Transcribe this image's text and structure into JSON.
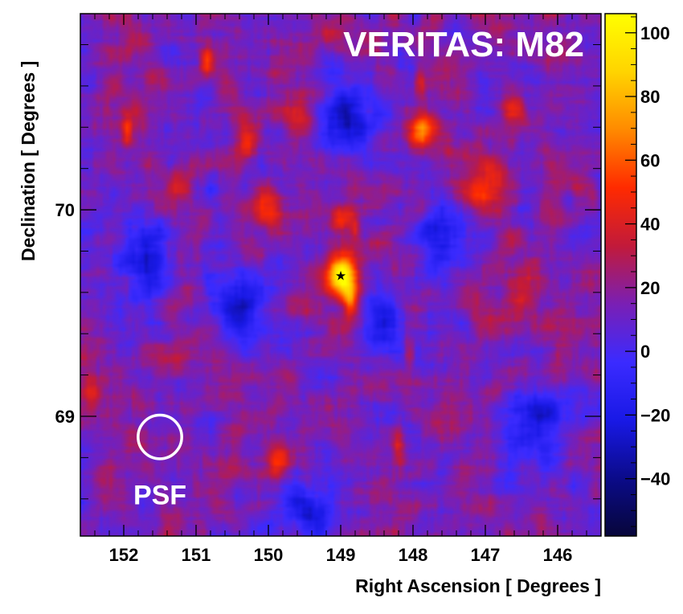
{
  "chart_data": {
    "type": "heatmap",
    "title": "VERITAS: M82",
    "xlabel": "Right Ascension [ Degrees ]",
    "ylabel": "Declination [ Degrees ]",
    "x_range": [
      152.6,
      145.4
    ],
    "y_range": [
      68.42,
      70.95
    ],
    "x_ticks": [
      152,
      151,
      150,
      149,
      148,
      147,
      146
    ],
    "y_ticks": [
      69,
      70
    ],
    "colorbar": {
      "range": [
        -58,
        106
      ],
      "ticks": [
        -40,
        -20,
        0,
        20,
        40,
        60,
        80,
        100
      ],
      "stops": [
        "#07063a",
        "#0b0b8a",
        "#1919e6",
        "#3b2bff",
        "#7a1fb4",
        "#c21a3a",
        "#ff2a00",
        "#ff8a00",
        "#ffd400",
        "#ffff00"
      ]
    },
    "background_level": 15,
    "hotspots": [
      {
        "ra": 149.0,
        "dec": 69.68,
        "value": 103,
        "sigma_ra": 0.12,
        "sigma_dec": 0.06
      },
      {
        "ra": 148.88,
        "dec": 69.62,
        "value": 45,
        "sigma_ra": 0.1,
        "sigma_dec": 0.1
      },
      {
        "ra": 148.85,
        "dec": 69.55,
        "value": 40,
        "sigma_ra": 0.05,
        "sigma_dec": 0.06
      },
      {
        "ra": 149.0,
        "dec": 69.95,
        "value": 60,
        "sigma_ra": 0.12,
        "sigma_dec": 0.05
      },
      {
        "ra": 148.8,
        "dec": 69.9,
        "value": 45,
        "sigma_ra": 0.05,
        "sigma_dec": 0.04
      },
      {
        "ra": 147.9,
        "dec": 70.38,
        "value": 70,
        "sigma_ra": 0.12,
        "sigma_dec": 0.06
      },
      {
        "ra": 150.85,
        "dec": 70.72,
        "value": 55,
        "sigma_ra": 0.06,
        "sigma_dec": 0.05
      },
      {
        "ra": 150.3,
        "dec": 70.32,
        "value": 50,
        "sigma_ra": 0.1,
        "sigma_dec": 0.06
      },
      {
        "ra": 149.6,
        "dec": 70.45,
        "value": 40,
        "sigma_ra": 0.15,
        "sigma_dec": 0.05
      },
      {
        "ra": 151.95,
        "dec": 70.38,
        "value": 45,
        "sigma_ra": 0.05,
        "sigma_dec": 0.05
      },
      {
        "ra": 151.25,
        "dec": 70.1,
        "value": 42,
        "sigma_ra": 0.1,
        "sigma_dec": 0.05
      },
      {
        "ra": 150.0,
        "dec": 70.0,
        "value": 42,
        "sigma_ra": 0.15,
        "sigma_dec": 0.06
      },
      {
        "ra": 147.0,
        "dec": 70.12,
        "value": 50,
        "sigma_ra": 0.2,
        "sigma_dec": 0.1
      },
      {
        "ra": 146.6,
        "dec": 70.5,
        "value": 40,
        "sigma_ra": 0.1,
        "sigma_dec": 0.06
      },
      {
        "ra": 147.9,
        "dec": 70.62,
        "value": 42,
        "sigma_ra": 0.05,
        "sigma_dec": 0.05
      },
      {
        "ra": 148.05,
        "dec": 69.3,
        "value": 45,
        "sigma_ra": 0.05,
        "sigma_dec": 0.05
      },
      {
        "ra": 149.85,
        "dec": 68.78,
        "value": 55,
        "sigma_ra": 0.1,
        "sigma_dec": 0.06
      },
      {
        "ra": 148.2,
        "dec": 68.85,
        "value": 45,
        "sigma_ra": 0.05,
        "sigma_dec": 0.06
      },
      {
        "ra": 152.45,
        "dec": 69.1,
        "value": 45,
        "sigma_ra": 0.1,
        "sigma_dec": 0.06
      },
      {
        "ra": 146.5,
        "dec": 69.6,
        "value": 35,
        "sigma_ra": 0.25,
        "sigma_dec": 0.12
      },
      {
        "ra": 151.4,
        "dec": 69.3,
        "value": 30,
        "sigma_ra": 0.2,
        "sigma_dec": 0.1
      },
      {
        "ra": 150.6,
        "dec": 69.3,
        "value": 30,
        "sigma_ra": 0.2,
        "sigma_dec": 0.1
      },
      {
        "ra": 147.5,
        "dec": 69.0,
        "value": 30,
        "sigma_ra": 0.2,
        "sigma_dec": 0.1
      }
    ],
    "cold_spots": [
      {
        "ra": 148.95,
        "dec": 70.45,
        "value": -30,
        "sigma_ra": 0.3,
        "sigma_dec": 0.12
      },
      {
        "ra": 150.4,
        "dec": 69.5,
        "value": -25,
        "sigma_ra": 0.3,
        "sigma_dec": 0.15
      },
      {
        "ra": 147.6,
        "dec": 69.85,
        "value": -20,
        "sigma_ra": 0.25,
        "sigma_dec": 0.12
      },
      {
        "ra": 148.4,
        "dec": 69.45,
        "value": -25,
        "sigma_ra": 0.2,
        "sigma_dec": 0.1
      },
      {
        "ra": 146.3,
        "dec": 68.95,
        "value": -22,
        "sigma_ra": 0.3,
        "sigma_dec": 0.15
      },
      {
        "ra": 151.7,
        "dec": 69.75,
        "value": -20,
        "sigma_ra": 0.25,
        "sigma_dec": 0.15
      },
      {
        "ra": 149.4,
        "dec": 68.55,
        "value": -20,
        "sigma_ra": 0.3,
        "sigma_dec": 0.1
      }
    ],
    "source_marker": {
      "ra": 149.0,
      "dec": 69.68,
      "symbol": "★"
    },
    "psf_circle": {
      "ra": 151.5,
      "dec": 68.9,
      "radius_deg": 0.1,
      "label": "PSF"
    }
  }
}
